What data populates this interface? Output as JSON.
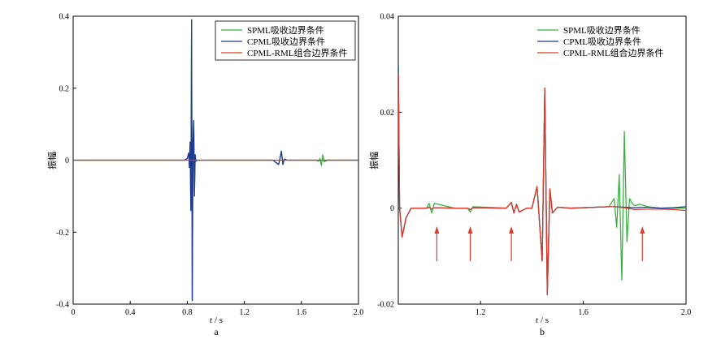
{
  "chart_data": [
    {
      "id": "a",
      "type": "line",
      "panel_label": "a",
      "xlabel_italic": "t",
      "xlabel_unit": "/ s",
      "ylabel": "振幅",
      "xlim": [
        0,
        2.0
      ],
      "ylim": [
        -0.4,
        0.4
      ],
      "xticks": [
        0,
        0.4,
        0.8,
        1.2,
        1.6,
        2.0
      ],
      "xtick_labels": [
        "0",
        "0.4",
        "0.8",
        "1.2",
        "1.6",
        "2.0"
      ],
      "yticks": [
        -0.4,
        -0.2,
        0,
        0.2,
        0.4
      ],
      "ytick_labels": [
        "-0.4",
        "-0.2",
        "0",
        "0.2",
        "0.4"
      ],
      "grid": false,
      "legend_position": "top-right",
      "series": [
        {
          "name": "SPML吸收边界条件",
          "color": "#3cb043",
          "x": [
            0,
            0.78,
            0.8,
            0.81,
            0.815,
            0.82,
            0.825,
            0.83,
            0.835,
            0.84,
            0.845,
            0.85,
            0.855,
            0.86,
            0.87,
            0.9,
            1.4,
            1.44,
            1.45,
            1.46,
            1.47,
            1.48,
            1.5,
            1.7,
            1.72,
            1.73,
            1.74,
            1.75,
            1.76,
            1.78,
            2.0
          ],
          "y": [
            0,
            0,
            0.005,
            0.02,
            -0.02,
            0.05,
            -0.14,
            0.39,
            -0.39,
            0.05,
            0.11,
            -0.1,
            0.015,
            -0.003,
            0,
            0,
            0,
            -0.012,
            0.005,
            0.025,
            -0.012,
            0.003,
            0,
            0,
            -0.003,
            0.004,
            -0.015,
            0.015,
            -0.005,
            0,
            0
          ]
        },
        {
          "name": "CPML吸收边界条件",
          "color": "#1f3a93",
          "x": [
            0,
            0.78,
            0.8,
            0.81,
            0.815,
            0.82,
            0.825,
            0.83,
            0.835,
            0.84,
            0.845,
            0.85,
            0.855,
            0.86,
            0.87,
            0.9,
            1.4,
            1.44,
            1.45,
            1.46,
            1.47,
            1.48,
            1.5,
            2.0
          ],
          "y": [
            0,
            0,
            0.005,
            0.02,
            -0.02,
            0.05,
            -0.14,
            0.39,
            -0.39,
            0.05,
            0.11,
            -0.1,
            0.015,
            -0.003,
            0,
            0,
            0,
            -0.012,
            0.005,
            0.025,
            -0.012,
            0.003,
            0,
            0
          ]
        },
        {
          "name": "CPML-RML组合边界条件",
          "color": "#e03a2a",
          "x": [
            0,
            2.0
          ],
          "y": [
            0,
            0
          ]
        }
      ]
    },
    {
      "id": "b",
      "type": "line",
      "panel_label": "b",
      "xlabel_italic": "t",
      "xlabel_unit": "/ s",
      "ylabel": "振幅",
      "xlim": [
        0.88,
        2.0
      ],
      "ylim": [
        -0.02,
        0.04
      ],
      "xticks": [
        1.2,
        1.6,
        2.0
      ],
      "xtick_labels": [
        "1.2",
        "1.6",
        "2.0"
      ],
      "yticks": [
        -0.02,
        0,
        0.02,
        0.04
      ],
      "ytick_labels": [
        "-0.02",
        "0",
        "0.02",
        "0.04"
      ],
      "grid": false,
      "legend_position": "top-right",
      "series": [
        {
          "name": "SPML吸收边界条件",
          "color": "#3cb043",
          "x": [
            0.88,
            0.885,
            0.895,
            0.91,
            0.93,
            0.96,
            0.99,
            1.0,
            1.01,
            1.02,
            1.1,
            1.15,
            1.16,
            1.17,
            1.3,
            1.32,
            1.33,
            1.34,
            1.35,
            1.38,
            1.4,
            1.42,
            1.44,
            1.45,
            1.46,
            1.47,
            1.48,
            1.5,
            1.55,
            1.7,
            1.72,
            1.73,
            1.74,
            1.75,
            1.76,
            1.77,
            1.78,
            1.79,
            1.8,
            1.82,
            1.85,
            1.9,
            2.0
          ],
          "y": [
            0.03,
            0.0,
            -0.006,
            -0.002,
            0,
            0,
            0,
            0.001,
            -0.001,
            0.001,
            0,
            0,
            -0.0008,
            0.0003,
            0,
            0.0012,
            -0.001,
            0.0008,
            -0.0008,
            0,
            0,
            0.0045,
            -0.011,
            0.025,
            -0.018,
            0.004,
            -0.001,
            0.0002,
            0,
            0.0003,
            0.002,
            -0.004,
            0.007,
            -0.015,
            0.016,
            -0.007,
            0.002,
            0.001,
            0.0005,
            0.0008,
            0.0003,
            0,
            0
          ]
        },
        {
          "name": "CPML吸收边界条件",
          "color": "#1f3a93",
          "x": [
            0.88,
            0.885,
            0.895,
            0.91,
            0.93,
            0.96,
            0.99,
            1.0,
            1.01,
            1.02,
            1.1,
            1.15,
            1.16,
            1.17,
            1.3,
            1.32,
            1.33,
            1.34,
            1.35,
            1.38,
            1.4,
            1.42,
            1.44,
            1.45,
            1.46,
            1.47,
            1.48,
            1.5,
            1.55,
            1.7,
            1.72,
            1.76,
            1.8,
            1.85,
            1.9,
            1.95,
            2.0
          ],
          "y": [
            0.03,
            0.0,
            -0.006,
            -0.002,
            0,
            0,
            0,
            0.0002,
            -0.0002,
            0.0001,
            0,
            0,
            -0.0003,
            0.0001,
            0,
            0.0012,
            -0.001,
            0.0008,
            -0.0008,
            0,
            0,
            0.0045,
            -0.011,
            0.025,
            -0.018,
            0.004,
            -0.001,
            0.0002,
            0,
            0.0003,
            0.0003,
            0.0002,
            0.0001,
            0.0002,
            0,
            0.0001,
            0.0003
          ]
        },
        {
          "name": "CPML-RML组合边界条件",
          "color": "#e03a2a",
          "x": [
            0.88,
            0.885,
            0.895,
            0.91,
            0.93,
            0.96,
            0.99,
            1.0,
            1.01,
            1.02,
            1.1,
            1.15,
            1.16,
            1.17,
            1.3,
            1.32,
            1.33,
            1.34,
            1.35,
            1.38,
            1.4,
            1.42,
            1.44,
            1.45,
            1.46,
            1.47,
            1.48,
            1.5,
            1.55,
            1.7,
            1.72,
            1.76,
            1.8,
            1.85,
            1.9,
            1.95,
            2.0
          ],
          "y": [
            0.028,
            0.0,
            -0.006,
            -0.002,
            0,
            0,
            0,
            0.0002,
            -0.0002,
            0.0001,
            0,
            0,
            -0.0003,
            0.0001,
            0,
            0.0012,
            -0.001,
            0.0008,
            -0.0008,
            0,
            0,
            0.0045,
            -0.011,
            0.025,
            -0.018,
            0.004,
            -0.001,
            0.0002,
            0,
            0.0003,
            0.0003,
            0.0001,
            -0.0003,
            -0.0002,
            -0.0002,
            -0.0003,
            -0.0005
          ]
        }
      ],
      "annotations": {
        "arrow_color": "#e03a2a",
        "arrows_at_x": [
          1.03,
          1.16,
          1.32,
          1.83
        ]
      }
    }
  ]
}
